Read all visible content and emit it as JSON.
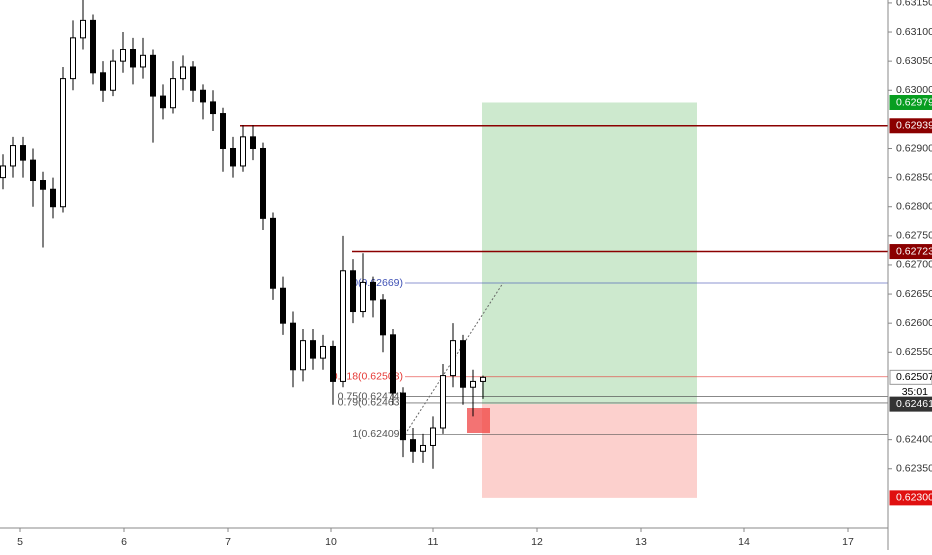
{
  "chart_data": {
    "type": "candlestick",
    "up_color": "#ffffff",
    "down_color": "#000000",
    "x": [
      0,
      1,
      2,
      3,
      4,
      5,
      6,
      7,
      8,
      9,
      10,
      11,
      12,
      13,
      14,
      15,
      16,
      17,
      18,
      19,
      20,
      21,
      22,
      23,
      24,
      25,
      26,
      27,
      28,
      29,
      30,
      31,
      32,
      33,
      34,
      35,
      36,
      37,
      38,
      39,
      40,
      41,
      42,
      43,
      44,
      45,
      46,
      47,
      48
    ],
    "open": [
      0.6285,
      0.6287,
      0.62905,
      0.6288,
      0.62845,
      0.6283,
      0.628,
      0.6302,
      0.6309,
      0.6312,
      0.6303,
      0.63,
      0.6305,
      0.6307,
      0.6304,
      0.6306,
      0.6299,
      0.6297,
      0.6302,
      0.6304,
      0.63,
      0.6298,
      0.6296,
      0.629,
      0.6287,
      0.6292,
      0.629,
      0.6278,
      0.6266,
      0.626,
      0.6252,
      0.6257,
      0.6254,
      0.6256,
      0.625,
      0.6269,
      0.6262,
      0.6267,
      0.6264,
      0.6258,
      0.6248,
      0.624,
      0.6238,
      0.6239,
      0.6242,
      0.6251,
      0.6257,
      0.6249,
      0.625
    ],
    "high": [
      0.6289,
      0.6292,
      0.6292,
      0.629,
      0.6286,
      0.6285,
      0.6304,
      0.6312,
      0.6316,
      0.6313,
      0.6305,
      0.6307,
      0.631,
      0.6309,
      0.6309,
      0.6307,
      0.6301,
      0.6305,
      0.6306,
      0.6305,
      0.6301,
      0.63,
      0.6297,
      0.6292,
      0.6294,
      0.6294,
      0.6291,
      0.6279,
      0.6268,
      0.6262,
      0.6259,
      0.6259,
      0.6258,
      0.6257,
      0.6275,
      0.6271,
      0.6272,
      0.6268,
      0.6265,
      0.6259,
      0.6249,
      0.6242,
      0.6241,
      0.6244,
      0.6253,
      0.626,
      0.6258,
      0.6252,
      0.6251
    ],
    "low": [
      0.6283,
      0.6285,
      0.6285,
      0.628,
      0.6273,
      0.6278,
      0.6279,
      0.63,
      0.6307,
      0.6301,
      0.6298,
      0.6299,
      0.6303,
      0.6301,
      0.6302,
      0.6291,
      0.6295,
      0.6296,
      0.63,
      0.6298,
      0.6295,
      0.6293,
      0.6286,
      0.6285,
      0.6286,
      0.6288,
      0.6276,
      0.6264,
      0.6258,
      0.6249,
      0.625,
      0.6252,
      0.6252,
      0.6246,
      0.6249,
      0.626,
      0.6261,
      0.6261,
      0.6255,
      0.6246,
      0.6237,
      0.6236,
      0.6236,
      0.6235,
      0.6241,
      0.6249,
      0.6246,
      0.6244,
      0.6247
    ],
    "close": [
      0.6287,
      0.62905,
      0.6288,
      0.62845,
      0.6283,
      0.628,
      0.6302,
      0.6309,
      0.6312,
      0.6303,
      0.63,
      0.6305,
      0.6307,
      0.6304,
      0.6306,
      0.6299,
      0.6297,
      0.6302,
      0.6304,
      0.63,
      0.6298,
      0.6296,
      0.629,
      0.6287,
      0.6292,
      0.629,
      0.6278,
      0.6266,
      0.626,
      0.6252,
      0.6257,
      0.6254,
      0.6256,
      0.625,
      0.6269,
      0.6262,
      0.6267,
      0.6264,
      0.6258,
      0.6248,
      0.624,
      0.6238,
      0.6239,
      0.6242,
      0.6251,
      0.6257,
      0.6249,
      0.625,
      0.62507
    ],
    "xlim": [
      -0.3,
      88.5
    ],
    "xticks": [
      {
        "value": 1.7,
        "label": "5"
      },
      {
        "value": 12.1,
        "label": "6"
      },
      {
        "value": 22.5,
        "label": "7"
      },
      {
        "value": 32.8,
        "label": "10"
      },
      {
        "value": 43,
        "label": "11"
      },
      {
        "value": 53.4,
        "label": "12"
      },
      {
        "value": 63.8,
        "label": "13"
      },
      {
        "value": 74.1,
        "label": "14"
      },
      {
        "value": 84.5,
        "label": "17"
      }
    ],
    "ylim": [
      0.62262,
      0.63155
    ],
    "yticks": [
      {
        "value": 0.6315,
        "label": "0.63150"
      },
      {
        "value": 0.631,
        "label": "0.63100"
      },
      {
        "value": 0.6305,
        "label": "0.63050"
      },
      {
        "value": 0.63,
        "label": "0.63000"
      },
      {
        "value": 0.629,
        "label": "0.62900"
      },
      {
        "value": 0.6285,
        "label": "0.62850"
      },
      {
        "value": 0.628,
        "label": "0.62800"
      },
      {
        "value": 0.6275,
        "label": "0.62750"
      },
      {
        "value": 0.627,
        "label": "0.62700"
      },
      {
        "value": 0.6265,
        "label": "0.62650"
      },
      {
        "value": 0.626,
        "label": "0.62600"
      },
      {
        "value": 0.6255,
        "label": "0.62550"
      },
      {
        "value": 0.624,
        "label": "0.62400"
      },
      {
        "value": 0.6235,
        "label": "0.62350"
      }
    ],
    "price_lines": [
      {
        "value": 0.62939,
        "label": "0.62939",
        "color": "#8b0000",
        "x_start": 23.7
      },
      {
        "value": 0.62723,
        "label": "0.62723",
        "color": "#8b0000",
        "x_start": 34.9
      }
    ],
    "price_labels": [
      {
        "value": 0.62979,
        "label": "0.62979",
        "color": "#089e20",
        "text_color": "#ffffff"
      },
      {
        "value": 0.623,
        "label": "0.62300",
        "color": "#e01010",
        "text_color": "#ffffff"
      },
      {
        "value": 0.62461,
        "label": "0.62461",
        "color": "#333333",
        "text_color": "#ffffff"
      },
      {
        "value": 0.62507,
        "label": "0.62507",
        "color": "#ffffff",
        "text_color": "#000000"
      }
    ],
    "countdown": "35:01",
    "fib_levels": [
      {
        "value": 0.62669,
        "label": "0(0.62669)",
        "color": "#3f51b5"
      },
      {
        "value": 0.62508,
        "label": "0.618(0.62508)",
        "color": "#e53935"
      },
      {
        "value": 0.62474,
        "label": "0.75(0.62474)",
        "color": "#555555"
      },
      {
        "value": 0.62463,
        "label": "0.79(0.62463)",
        "color": "#555555"
      },
      {
        "value": 0.62409,
        "label": "1(0.62409)",
        "color": "#555555"
      }
    ],
    "fib_x_start": 40.2,
    "position": {
      "x_start": 47.9,
      "x_end": 69.4,
      "entry": 0.62461,
      "target": 0.62979,
      "stop": 0.623
    }
  }
}
